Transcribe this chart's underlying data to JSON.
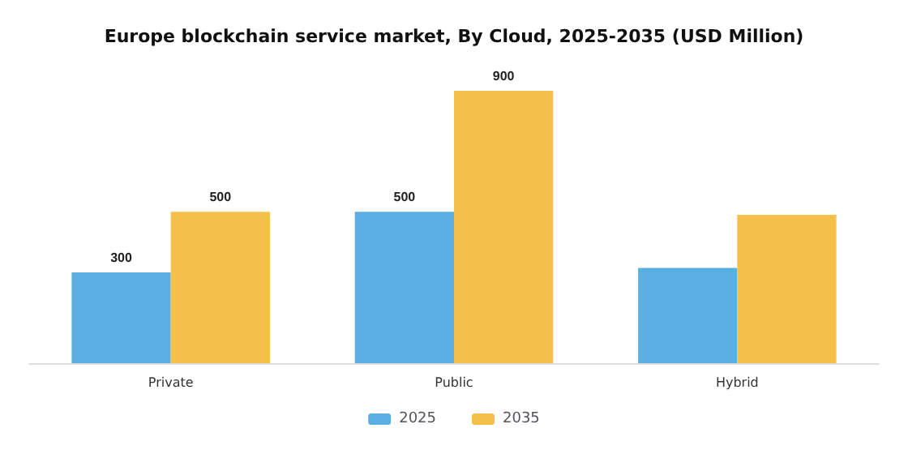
{
  "chart_data": {
    "type": "bar",
    "title": "Europe blockchain service market, By Cloud, 2025-2035 (USD Million)",
    "categories": [
      "Private",
      "Public",
      "Hybrid"
    ],
    "series": [
      {
        "name": "2025",
        "color": "#5aafe2",
        "values": [
          300,
          500,
          315
        ],
        "value_labels": [
          "300",
          "500",
          null
        ]
      },
      {
        "name": "2035",
        "color": "#f5c04a",
        "values": [
          500,
          900,
          490
        ],
        "value_labels": [
          "500",
          "900",
          null
        ]
      }
    ],
    "legend": "bottom",
    "grid": false
  }
}
